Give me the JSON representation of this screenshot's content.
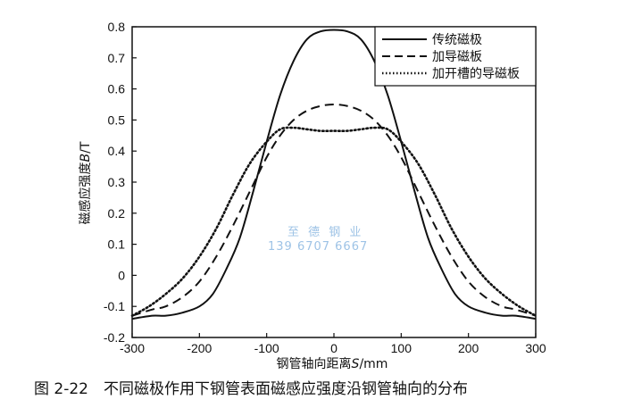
{
  "chart_data": {
    "type": "line",
    "xlabel_prefix": "钢管轴向距离",
    "xlabel_var": "S",
    "xlabel_unit": "/mm",
    "ylabel_prefix": "磁感应强度",
    "ylabel_var": "B",
    "ylabel_unit": "/T",
    "xlim": [
      -300,
      300
    ],
    "ylim": [
      -0.2,
      0.8
    ],
    "xticks": [
      -300,
      -200,
      -100,
      0,
      100,
      200,
      300
    ],
    "yticks": [
      -0.2,
      -0.1,
      0,
      0.1,
      0.2,
      0.3,
      0.4,
      0.5,
      0.6,
      0.7,
      0.8
    ],
    "ytick_labels": [
      "-0.2",
      "-0.1",
      "0",
      "0.1",
      "0.2",
      "0.3",
      "0.4",
      "0.5",
      "0.6",
      "0.7",
      "0.8"
    ],
    "xtick_labels": [
      "-300",
      "-200",
      "-100",
      "0",
      "100",
      "200",
      "300"
    ],
    "legend_position": "top-right",
    "series": [
      {
        "name": "传统磁极",
        "style": "solid",
        "x": [
          -300,
          -270,
          -250,
          -225,
          -200,
          -180,
          -160,
          -140,
          -120,
          -100,
          -80,
          -60,
          -40,
          -20,
          0,
          20,
          40,
          60,
          80,
          100,
          120,
          140,
          160,
          180,
          200,
          225,
          250,
          270,
          300
        ],
        "y": [
          -0.14,
          -0.13,
          -0.13,
          -0.12,
          -0.1,
          -0.06,
          0.02,
          0.12,
          0.27,
          0.43,
          0.58,
          0.69,
          0.76,
          0.785,
          0.79,
          0.785,
          0.76,
          0.69,
          0.58,
          0.43,
          0.27,
          0.12,
          0.02,
          -0.06,
          -0.1,
          -0.12,
          -0.13,
          -0.13,
          -0.14
        ]
      },
      {
        "name": "加导磁板",
        "style": "dashed",
        "x": [
          -300,
          -270,
          -250,
          -225,
          -200,
          -175,
          -150,
          -125,
          -100,
          -80,
          -60,
          -40,
          -20,
          0,
          20,
          40,
          60,
          80,
          100,
          125,
          150,
          175,
          200,
          225,
          250,
          270,
          300
        ],
        "y": [
          -0.13,
          -0.11,
          -0.1,
          -0.07,
          -0.02,
          0.06,
          0.16,
          0.27,
          0.38,
          0.45,
          0.5,
          0.53,
          0.545,
          0.55,
          0.545,
          0.53,
          0.5,
          0.45,
          0.38,
          0.27,
          0.16,
          0.06,
          -0.02,
          -0.07,
          -0.1,
          -0.11,
          -0.13
        ]
      },
      {
        "name": "加开槽的导磁板",
        "style": "dotted",
        "x": [
          -300,
          -275,
          -250,
          -225,
          -200,
          -175,
          -150,
          -125,
          -100,
          -80,
          -60,
          -40,
          -20,
          0,
          20,
          40,
          60,
          80,
          100,
          125,
          150,
          175,
          200,
          225,
          250,
          275,
          300
        ],
        "y": [
          -0.13,
          -0.1,
          -0.06,
          -0.01,
          0.06,
          0.15,
          0.26,
          0.36,
          0.43,
          0.47,
          0.475,
          0.47,
          0.465,
          0.465,
          0.465,
          0.47,
          0.475,
          0.47,
          0.43,
          0.36,
          0.26,
          0.15,
          0.06,
          -0.01,
          -0.06,
          -0.1,
          -0.13
        ]
      }
    ]
  },
  "watermark": {
    "line1": "至 德 钢 业",
    "line2": "139 6707 6667"
  },
  "caption": "图 2-22　不同磁极作用下钢管表面磁感应强度沿钢管轴向的分布"
}
